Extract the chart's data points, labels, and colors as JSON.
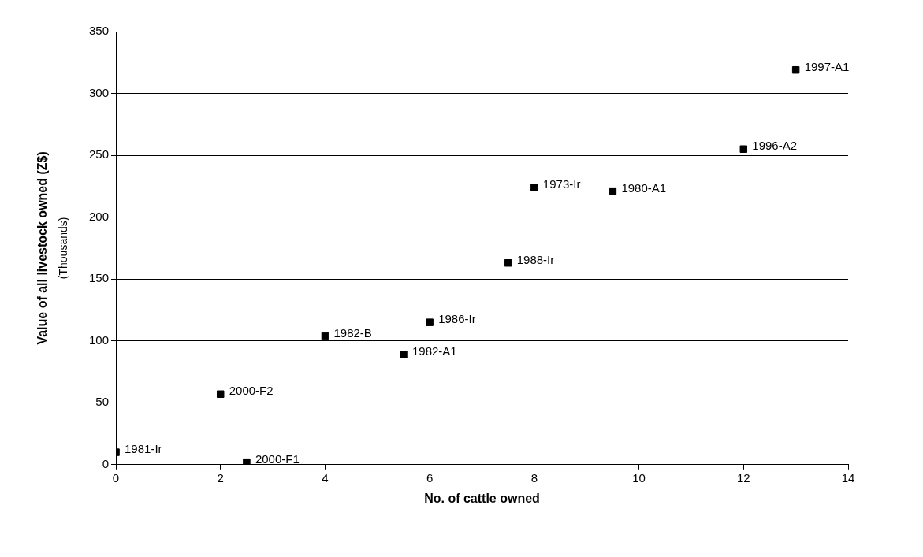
{
  "chart_data": {
    "type": "scatter",
    "xlabel": "No. of cattle owned",
    "ylabel": "Value of all livestock owned (Z$)",
    "x": [
      0,
      2,
      2.5,
      4,
      5.5,
      6,
      7.5,
      8,
      9.5,
      12,
      13
    ],
    "series": [
      {
        "color": "#000000",
        "values": [
          10,
          57,
          2,
          104,
          89,
          115,
          163,
          224,
          221,
          255,
          319
        ]
      }
    ],
    "xlim": [
      0,
      14
    ],
    "xticks": [
      0,
      2,
      4,
      6,
      8,
      10,
      12,
      14
    ],
    "ylim": [
      0,
      350
    ],
    "yticks": [
      0,
      50,
      100,
      150,
      200,
      250,
      300,
      350
    ],
    "grid": "y",
    "legend": false,
    "marker": "square",
    "annotations": [
      "(Thousands)",
      {
        "text": "1981-Ir",
        "x": 0,
        "y": 10
      },
      {
        "text": "2000-F2",
        "x": 2,
        "y": 57
      },
      {
        "text": "2000-F1",
        "x": 2.5,
        "y": 2
      },
      {
        "text": "1982-B",
        "x": 4,
        "y": 104
      },
      {
        "text": "1982-A1",
        "x": 5.5,
        "y": 89
      },
      {
        "text": "1986-Ir",
        "x": 6,
        "y": 115
      },
      {
        "text": "1988-Ir",
        "x": 7.5,
        "y": 163
      },
      {
        "text": "1973-Ir",
        "x": 8,
        "y": 224
      },
      {
        "text": "1980-A1",
        "x": 9.5,
        "y": 221
      },
      {
        "text": "1996-A2",
        "x": 12,
        "y": 255
      },
      {
        "text": "1997-A1",
        "x": 13,
        "y": 319
      }
    ]
  }
}
